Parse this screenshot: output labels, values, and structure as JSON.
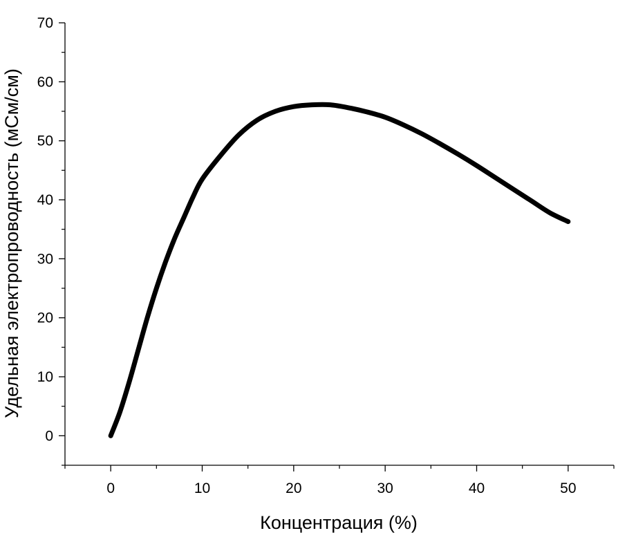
{
  "chart_data": {
    "type": "line",
    "title": "",
    "xlabel": "Концентрация (%)",
    "ylabel": "Удельная электропроводность (мСм/см)",
    "xlim": [
      -5,
      55
    ],
    "ylim": [
      -5,
      70
    ],
    "x_ticks": [
      0,
      10,
      20,
      30,
      40,
      50
    ],
    "y_ticks": [
      0,
      10,
      20,
      30,
      40,
      50,
      60,
      70
    ],
    "grid": false,
    "line_color": "#000000",
    "series": [
      {
        "x": [
          0,
          1,
          2,
          3,
          4,
          5,
          6,
          7,
          8,
          9,
          10,
          12,
          14,
          16,
          18,
          20,
          22,
          24,
          26,
          28,
          30,
          32,
          34,
          36,
          38,
          40,
          42,
          44,
          46,
          48,
          50
        ],
        "values": [
          0,
          4,
          9,
          14.5,
          20,
          25,
          29.5,
          33.5,
          37,
          40.5,
          43.5,
          47.5,
          51,
          53.5,
          55,
          55.8,
          56.1,
          56.1,
          55.6,
          54.9,
          54,
          52.7,
          51.2,
          49.5,
          47.7,
          45.8,
          43.8,
          41.8,
          39.8,
          37.8,
          36.3
        ]
      }
    ]
  }
}
